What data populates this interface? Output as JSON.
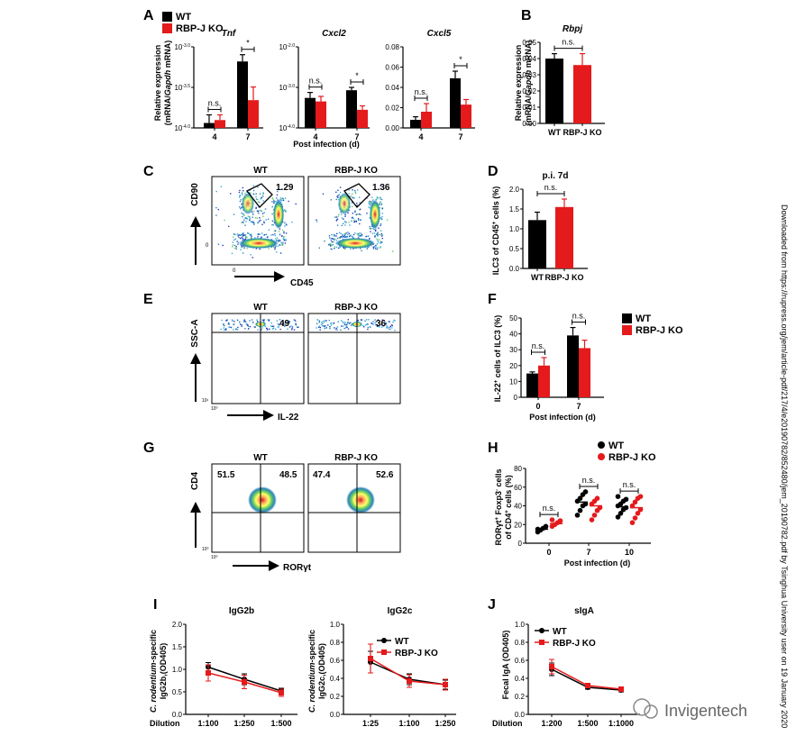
{
  "colors": {
    "wt": "#000000",
    "ko": "#e41a1c",
    "axis": "#000000"
  },
  "panel_letters": [
    "A",
    "B",
    "C",
    "D",
    "E",
    "F",
    "G",
    "H",
    "I",
    "J"
  ],
  "legend": {
    "wt": "WT",
    "ko": "RBP-J KO"
  },
  "chart_data": [
    {
      "id": "A1",
      "type": "bar",
      "title": "Tnf",
      "ylabel": "Relative expression (mRNA/Gapdh mRNA)",
      "xlabel": "",
      "yscale": "log",
      "ylim": [
        0.0001,
        0.001
      ],
      "yticks": [
        "10-3.0",
        "10-3.5",
        "10-4.0"
      ],
      "categories": [
        "4",
        "7"
      ],
      "series": [
        {
          "name": "WT",
          "values": [
            0.000115,
            0.00066
          ],
          "err": [
            3e-05,
            0.00014
          ]
        },
        {
          "name": "RBP-J KO",
          "values": [
            0.000125,
            0.00022
          ],
          "err": [
            2e-05,
            0.0001
          ]
        }
      ],
      "sig": [
        "n.s.",
        "*"
      ]
    },
    {
      "id": "A2",
      "type": "bar",
      "title": "Cxcl2",
      "yscale": "log",
      "ylim": [
        0.0001,
        0.01
      ],
      "yticks": [
        "10-2.0",
        "10-3.0",
        "10-4.0"
      ],
      "categories": [
        "4",
        "7"
      ],
      "series": [
        {
          "name": "WT",
          "values": [
            0.00055,
            0.00085
          ],
          "err": [
            0.0002,
            0.00015
          ]
        },
        {
          "name": "RBP-J KO",
          "values": [
            0.00045,
            0.00028
          ],
          "err": [
            0.00015,
            7e-05
          ]
        }
      ],
      "sig": [
        "n.s.",
        "*"
      ]
    },
    {
      "id": "A3",
      "type": "bar",
      "title": "Cxcl5",
      "ylim": [
        0,
        0.08
      ],
      "yticks": [
        "0.08",
        "0.06",
        "0.04",
        "0.02",
        "0.00"
      ],
      "categories": [
        "4",
        "7"
      ],
      "series": [
        {
          "name": "WT",
          "values": [
            0.008,
            0.049
          ],
          "err": [
            0.003,
            0.007
          ]
        },
        {
          "name": "RBP-J KO",
          "values": [
            0.016,
            0.023
          ],
          "err": [
            0.008,
            0.005
          ]
        }
      ],
      "sig": [
        "n.s.",
        "*"
      ]
    },
    {
      "id": "B",
      "type": "bar",
      "title": "Rbpj",
      "ylabel": "Relative expression (mRNA/Gapdh mRNA)",
      "ylim": [
        0,
        0.05
      ],
      "yticks": [
        "0.05",
        "0.04",
        "0.03",
        "0.02",
        "0.01",
        "0.00"
      ],
      "categories": [
        "WT",
        "RBP-J KO"
      ],
      "values": [
        0.04,
        0.036
      ],
      "err": [
        0.003,
        0.007
      ],
      "sig": "n.s."
    },
    {
      "id": "D",
      "type": "bar",
      "title": "p.i. 7d",
      "ylabel": "ILC3 of CD45+ cells (%)",
      "ylim": [
        0,
        2.0
      ],
      "yticks": [
        "2.0",
        "1.5",
        "1.0",
        "0.5",
        "0.0"
      ],
      "categories": [
        "WT",
        "RBP-J KO"
      ],
      "values": [
        1.22,
        1.55
      ],
      "err": [
        0.2,
        0.2
      ],
      "sig": "n.s."
    },
    {
      "id": "F",
      "type": "bar",
      "ylabel": "IL-22+ cells of ILC3 (%)",
      "xlabel": "Post infection (d)",
      "ylim": [
        0,
        50
      ],
      "yticks": [
        "50",
        "40",
        "30",
        "20",
        "10",
        "0"
      ],
      "categories": [
        "0",
        "7"
      ],
      "series": [
        {
          "name": "WT",
          "values": [
            15,
            39
          ],
          "err": [
            1,
            5
          ]
        },
        {
          "name": "RBP-J KO",
          "values": [
            20,
            31
          ],
          "err": [
            5,
            5
          ]
        }
      ],
      "sig": [
        "n.s.",
        "n.s."
      ],
      "legend_position": "top-right"
    },
    {
      "id": "H",
      "type": "scatter",
      "ylabel": "RORγt+ Foxp3- cells of CD4+ cells (%)",
      "xlabel": "Post infection (d)",
      "ylim": [
        0,
        80
      ],
      "yticks": [
        "80",
        "60",
        "40",
        "20",
        "0"
      ],
      "categories": [
        "0",
        "7",
        "10"
      ],
      "series": [
        {
          "name": "WT",
          "means": [
            15,
            44,
            39
          ],
          "points": [
            [
              12,
              14,
              16,
              18,
              15
            ],
            [
              30,
              35,
              40,
              42,
              45,
              48,
              52,
              55
            ],
            [
              28,
              32,
              36,
              38,
              40,
              42,
              45,
              47,
              50
            ]
          ]
        },
        {
          "name": "RBP-J KO",
          "means": [
            21,
            40,
            38
          ],
          "points": [
            [
              18,
              20,
              22,
              24,
              25
            ],
            [
              25,
              30,
              35,
              38,
              42,
              45,
              48
            ],
            [
              22,
              27,
              32,
              36,
              40,
              44,
              48,
              50
            ]
          ]
        }
      ],
      "sig": [
        "n.s.",
        "n.s.",
        "n.s."
      ],
      "legend_position": "top-right"
    },
    {
      "id": "I1",
      "type": "line",
      "title": "IgG2b",
      "ylabel": "C. rodentium-specific IgG2b,(OD405)",
      "xlabel": "Dilution",
      "ylim": [
        0,
        2.0
      ],
      "yticks": [
        "2.0",
        "1.5",
        "1.0",
        "0.5",
        "0.0"
      ],
      "categories": [
        "1:100",
        "1:250",
        "1:500"
      ],
      "series": [
        {
          "name": "WT",
          "values": [
            1.05,
            0.78,
            0.52
          ],
          "err": [
            0.1,
            0.12,
            0.06
          ]
        },
        {
          "name": "RBP-J KO",
          "values": [
            0.92,
            0.72,
            0.48
          ],
          "err": [
            0.18,
            0.15,
            0.08
          ]
        }
      ],
      "legend_position": "top-right"
    },
    {
      "id": "I2",
      "type": "line",
      "title": "IgG2c",
      "ylabel": "C. rodentium-specific IgG2c,(OD405)",
      "xlabel": "",
      "ylim": [
        0,
        1.0
      ],
      "yticks": [
        "1.0",
        "0.8",
        "0.6",
        "0.4",
        "0.2",
        "0.0"
      ],
      "categories": [
        "1:25",
        "1:100",
        "1:250"
      ],
      "series": [
        {
          "name": "WT",
          "values": [
            0.58,
            0.39,
            0.33
          ],
          "err": [
            0.12,
            0.06,
            0.05
          ]
        },
        {
          "name": "RBP-J KO",
          "values": [
            0.62,
            0.37,
            0.33
          ],
          "err": [
            0.16,
            0.07,
            0.06
          ]
        }
      ],
      "legend_position": "top-right"
    },
    {
      "id": "J",
      "type": "line",
      "title": "sIgA",
      "ylabel": "Fecal IgA (OD405)",
      "xlabel": "Dilution",
      "ylim": [
        0,
        1.0
      ],
      "yticks": [
        "1.0",
        "0.8",
        "0.6",
        "0.4",
        "0.2",
        "0.0"
      ],
      "categories": [
        "1:200",
        "1:500",
        "1:1000"
      ],
      "series": [
        {
          "name": "WT",
          "values": [
            0.5,
            0.3,
            0.27
          ],
          "err": [
            0.07,
            0.02,
            0.02
          ]
        },
        {
          "name": "RBP-J KO",
          "values": [
            0.53,
            0.32,
            0.28
          ],
          "err": [
            0.08,
            0.02,
            0.02
          ]
        }
      ],
      "legend_position": "top-left"
    }
  ],
  "flow": {
    "C": {
      "groups": [
        "WT",
        "RBP-J KO"
      ],
      "values": [
        "1.29",
        "1.36"
      ],
      "ylabel": "CD90",
      "xlabel": "CD45"
    },
    "E": {
      "groups": [
        "WT",
        "RBP-J KO"
      ],
      "values": [
        "49",
        "36"
      ],
      "ylabel": "SSC-A",
      "xlabel": "IL-22"
    },
    "G": {
      "groups": [
        "WT",
        "RBP-J KO"
      ],
      "quadrants": [
        [
          "51.5",
          "48.5"
        ],
        [
          "47.4",
          "52.6"
        ]
      ],
      "ylabel": "CD4",
      "xlabel": "RORγt"
    }
  },
  "a_xlabel": "Post infection (d)",
  "watermark": {
    "text": "Invigentech"
  },
  "side_text": "Downloaded from https://rupress.org/jem/article-pdf/217/4/e20190782/852480/jem_20190782.pdf by Tsinghua University user on 19 January 2020"
}
